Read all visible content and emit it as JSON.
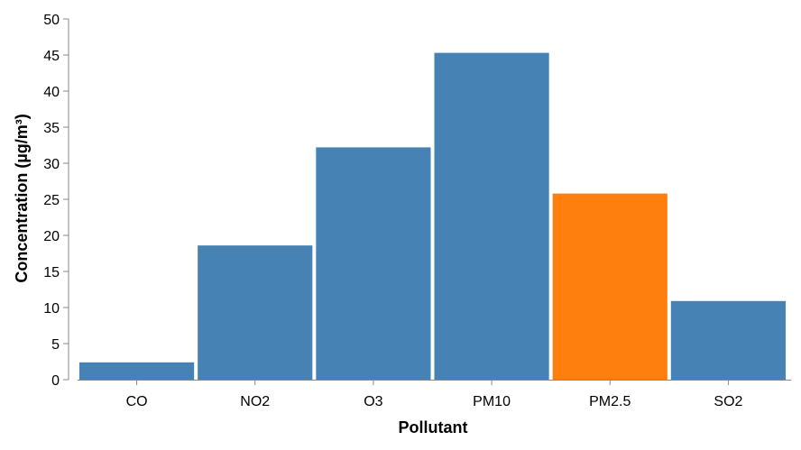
{
  "chart_data": {
    "type": "bar",
    "title": "",
    "xlabel": "Pollutant",
    "ylabel": "Concentration (µg/m³)",
    "categories": [
      "CO",
      "NO2",
      "O3",
      "PM10",
      "PM2.5",
      "SO2"
    ],
    "values": [
      2.4,
      18.6,
      32.2,
      45.3,
      25.8,
      10.9
    ],
    "highlight": {
      "category": "PM2.5",
      "color": "#ff7f0e"
    },
    "bar_color": "#4682b4",
    "ylim": [
      0,
      50
    ],
    "yticks": [
      0,
      5,
      10,
      15,
      20,
      25,
      30,
      35,
      40,
      45,
      50
    ],
    "grid": false,
    "legend": "none"
  }
}
